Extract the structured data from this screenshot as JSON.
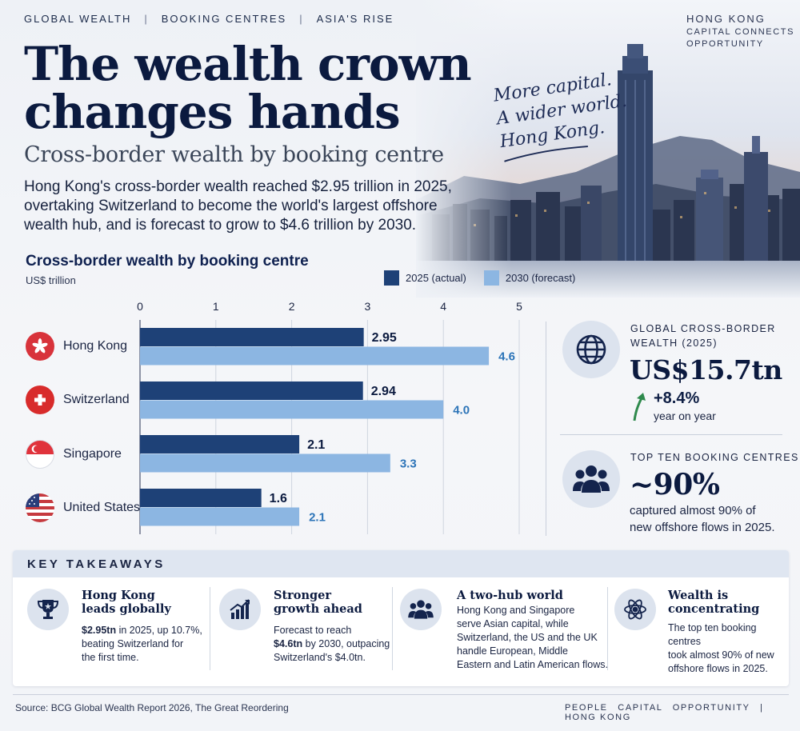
{
  "header": {
    "nav": [
      "GLOBAL WEALTH",
      "BOOKING CENTRES",
      "ASIA'S RISE"
    ],
    "corner_title": "HONG KONG",
    "corner_lines": [
      "CAPITAL CONNECTS",
      "OPPORTUNITY"
    ]
  },
  "script_text": [
    "More capital.",
    "A wider world.",
    "Hong Kong."
  ],
  "title_lines": [
    "The wealth crown",
    "changes hands"
  ],
  "subtitle": "Cross-border wealth by booking centre",
  "intro": "Hong Kong's cross-border wealth reached $2.95 trillion in 2025, overtaking Switzerland to become the world's largest offshore wealth hub, and is forecast to grow to $4.6 trillion by 2030.",
  "colors": {
    "navy": "#1e4177",
    "light_blue": "#8cb6e2",
    "forecast_label": "#2c74b8",
    "text_dark": "#0b1a3f",
    "green_arrow": "#2f8a4d",
    "hk_red": "#d8333b",
    "ch_red": "#d82b2b"
  },
  "chart_data": {
    "type": "bar",
    "orientation": "horizontal",
    "title": "Cross-border wealth by booking centre",
    "unit_label": "US$ trillion",
    "categories": [
      "Hong Kong",
      "Switzerland",
      "Singapore",
      "United States"
    ],
    "series": [
      {
        "name": "2025 (actual)",
        "values": [
          2.95,
          2.94,
          2.1,
          1.6
        ],
        "labels": [
          "2.95",
          "2.94",
          "2.1",
          "1.6"
        ],
        "color": "#1e4177"
      },
      {
        "name": "2030 (forecast)",
        "values": [
          4.6,
          4.0,
          3.3,
          2.1
        ],
        "labels": [
          "4.6",
          "4.0",
          "3.3",
          "2.1"
        ],
        "color": "#8cb6e2"
      }
    ],
    "xlim": [
      0,
      5
    ],
    "ticks": [
      "0",
      "1",
      "2",
      "3",
      "4",
      "5"
    ],
    "legend_placement": "top-right",
    "grid": true
  },
  "flags": {
    "hong_kong": "hk-flag-icon",
    "switzerland": "ch-flag-icon",
    "singapore": "sg-flag-icon",
    "united_states": "us-flag-icon"
  },
  "stats": {
    "global": {
      "label_lines": [
        "GLOBAL CROSS-BORDER",
        "WEALTH (2025)"
      ],
      "value": "US$15.7tn",
      "growth": "+8.4%",
      "growth_sub": "year on year",
      "icon": "globe-icon"
    },
    "top_ten": {
      "label": "TOP TEN BOOKING CENTRES",
      "value": "~90%",
      "desc_lines": [
        "captured almost 90% of",
        "new offshore flows in 2025."
      ],
      "icon": "people-icon"
    }
  },
  "takeaways": {
    "title": "KEY TAKEAWAYS",
    "items": [
      {
        "icon": "trophy-icon",
        "head": [
          "Hong Kong",
          "leads globally"
        ],
        "bold": "$2.95tn",
        "body": [
          " in 2025, up 10.7%,",
          "beating Switzerland for",
          "the first time."
        ]
      },
      {
        "icon": "growth-chart-icon",
        "head": [
          "Stronger",
          "growth ahead"
        ],
        "pre": "Forecast to reach",
        "bold": "$4.6tn",
        "body": [
          " by 2030, outpacing",
          "Switzerland's $4.0tn."
        ]
      },
      {
        "icon": "people-icon",
        "head": [
          "A two-hub world"
        ],
        "body": [
          "Hong Kong and Singapore",
          "serve Asian capital, while",
          "Switzerland, the US and the UK",
          "handle European, Middle",
          "Eastern and Latin American flows."
        ]
      },
      {
        "icon": "atom-icon",
        "head": [
          "Wealth is",
          "concentrating"
        ],
        "body": [
          "The top ten booking centres",
          "took almost 90% of new",
          "offshore flows in 2025."
        ]
      }
    ]
  },
  "footer": {
    "source": "Source: BCG Global Wealth Report 2026, The Great Reordering",
    "right": [
      "PEOPLE",
      "CAPITAL",
      "OPPORTUNITY",
      "HONG KONG"
    ]
  }
}
